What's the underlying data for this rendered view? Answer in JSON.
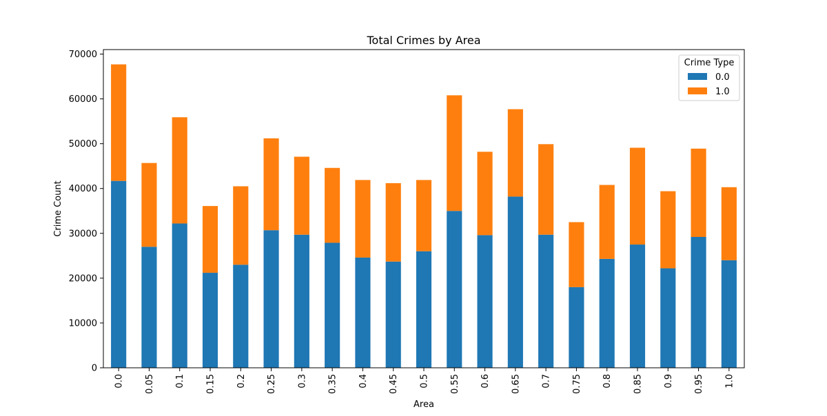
{
  "chart_data": {
    "type": "bar",
    "stacked": true,
    "title": "Total Crimes by Area",
    "xlabel": "Area",
    "ylabel": "Crime Count",
    "categories": [
      "0.0",
      "0.05",
      "0.1",
      "0.15",
      "0.2",
      "0.25",
      "0.3",
      "0.35",
      "0.4",
      "0.45",
      "0.5",
      "0.55",
      "0.6",
      "0.65",
      "0.7",
      "0.75",
      "0.8",
      "0.85",
      "0.9",
      "0.95",
      "1.0"
    ],
    "series": [
      {
        "name": "0.0",
        "color": "#1f77b4",
        "values": [
          41700,
          27000,
          32200,
          21200,
          23000,
          30700,
          29700,
          27900,
          24600,
          23700,
          26000,
          35000,
          29600,
          38200,
          29700,
          18000,
          24300,
          27500,
          22200,
          29200,
          24000
        ]
      },
      {
        "name": "1.0",
        "color": "#ff7f0e",
        "values": [
          26000,
          18700,
          23700,
          14900,
          17500,
          20500,
          17400,
          16700,
          17300,
          17500,
          15900,
          25800,
          18600,
          19500,
          20200,
          14500,
          16500,
          21600,
          17200,
          19700,
          16300
        ]
      }
    ],
    "ylim": [
      0,
      71000
    ],
    "yticks": [
      0,
      10000,
      20000,
      30000,
      40000,
      50000,
      60000,
      70000
    ],
    "ytick_labels": [
      "0",
      "10000",
      "20000",
      "30000",
      "40000",
      "50000",
      "60000",
      "70000"
    ],
    "grid": false,
    "legend": {
      "title": "Crime Type",
      "placement": "top-right"
    }
  }
}
